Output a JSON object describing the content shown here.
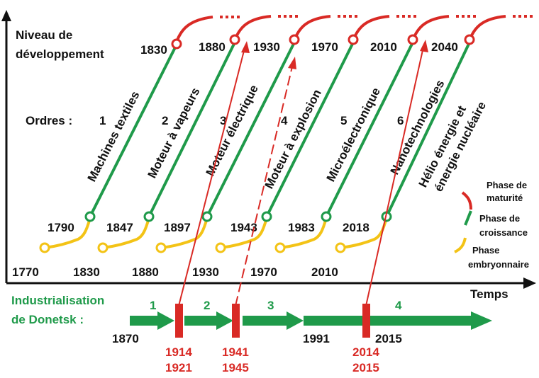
{
  "axes": {
    "y_label_line1": "Niveau de",
    "y_label_line2": "développement",
    "x_label": "Temps"
  },
  "orders_label": "Ordres :",
  "colors": {
    "maturity": "#d92a25",
    "growth": "#1f9a4a",
    "embryonic": "#f3c316",
    "donetsk": "#1f9a4a"
  },
  "waves": [
    {
      "order": "1",
      "name": "Machines textiles",
      "start": "1770",
      "growth_start": "1790",
      "growth_end": "1830",
      "maturity_label": "1830",
      "emb_end_label": "1830"
    },
    {
      "order": "2",
      "name": "Moteur à vapeurs",
      "start": "1830",
      "growth_start": "1847",
      "growth_end": "1880",
      "maturity_label": "1880",
      "emb_end_label": "1880"
    },
    {
      "order": "3",
      "name": "Moteur électrique",
      "start": "1880",
      "growth_start": "1897",
      "growth_end": "1930",
      "maturity_label": "1930",
      "emb_end_label": "1930"
    },
    {
      "order": "4",
      "name": "Moteur à explosion",
      "start": "1930",
      "growth_start": "1943",
      "growth_end": "1970",
      "maturity_label": "1970",
      "emb_end_label": "1970"
    },
    {
      "order": "5",
      "name": "Microélectronique",
      "start": "1970",
      "growth_start": "1983",
      "growth_end": "2010",
      "maturity_label": "2010",
      "emb_end_label": "2010"
    },
    {
      "order": "6",
      "name_line1": "Nanotechnologies",
      "name_line2": "Hélio énergie et",
      "name_line3": "énergie nucléaire",
      "start": "2010",
      "growth_start": "2018",
      "maturity_label": "2040"
    }
  ],
  "bottom_years": [
    "1770",
    "1830",
    "1880",
    "1930",
    "1970",
    "2010"
  ],
  "legend": [
    {
      "line1": "Phase de",
      "line2": "maturité",
      "color": "#d92a25"
    },
    {
      "line1": "Phase de",
      "line2": "croissance",
      "color": "#1f9a4a"
    },
    {
      "line1": "Phase",
      "line2": "embryonnaire",
      "color": "#f3c316"
    }
  ],
  "donetsk": {
    "title_line1": "Industrialisation",
    "title_line2": "de Donetsk :",
    "stages": [
      "1",
      "2",
      "3",
      "4"
    ],
    "years": {
      "start": "1870",
      "y1991": "1991",
      "y2015": "2015"
    },
    "events": [
      {
        "line1": "1914",
        "line2": "1921"
      },
      {
        "line1": "1941",
        "line2": "1945"
      },
      {
        "line1": "2014",
        "line2": "2015"
      }
    ]
  }
}
